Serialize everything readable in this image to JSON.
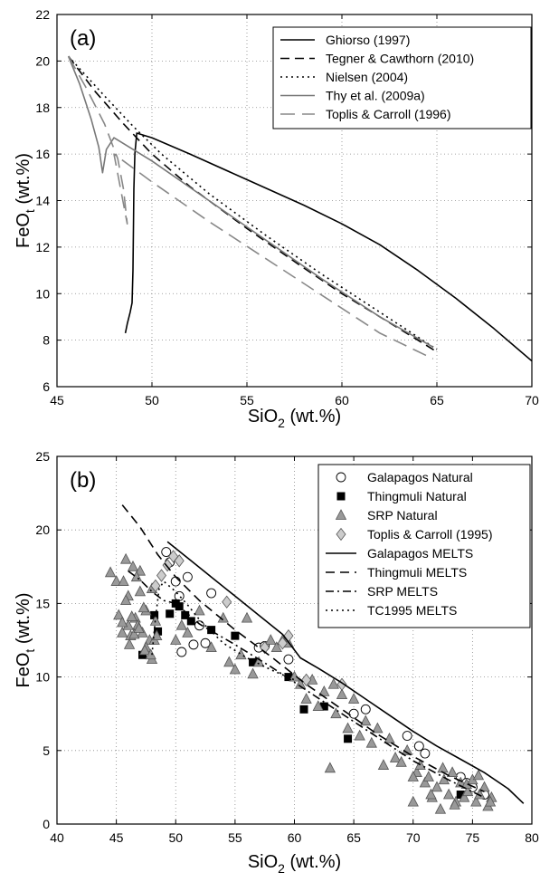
{
  "chart_data": [
    {
      "type": "line",
      "panel_label": "(a)",
      "xlabel": "SiO",
      "xlabel_sub": "2",
      "xlabel_unit": " (wt.%)",
      "ylabel": "FeO",
      "ylabel_sub": "t",
      "ylabel_unit": " (wt.%)",
      "xlim": [
        45,
        70
      ],
      "ylim": [
        6,
        22
      ],
      "xticks": [
        45,
        50,
        55,
        60,
        65,
        70
      ],
      "yticks": [
        6,
        8,
        10,
        12,
        14,
        16,
        18,
        20,
        22
      ],
      "grid": true,
      "legend_position": "top-right",
      "series": [
        {
          "name": "Ghiorso (1997)",
          "color": "#000000",
          "dash": "solid",
          "x": [
            48.6,
            48.7,
            48.85,
            48.95,
            49.0,
            49.05,
            49.1,
            49.2,
            50.0,
            52.0,
            55.0,
            58.0,
            60.0,
            62.0,
            64.0,
            66.0,
            68.0,
            70.0
          ],
          "y": [
            8.3,
            8.7,
            9.2,
            9.6,
            11.0,
            14.5,
            16.0,
            16.9,
            16.7,
            16.0,
            14.9,
            13.8,
            13.0,
            12.1,
            11.0,
            9.8,
            8.5,
            7.1
          ]
        },
        {
          "name": "Tegner & Cawthorn (2010)",
          "color": "#000000",
          "dash": "dashed",
          "x": [
            45.6,
            47.0,
            48.5,
            50.0,
            52.0,
            55.0,
            58.0,
            60.0,
            62.0,
            65.0
          ],
          "y": [
            20.2,
            18.7,
            17.3,
            16.0,
            14.6,
            12.8,
            11.1,
            10.0,
            9.0,
            7.5
          ]
        },
        {
          "name": "Nielsen (2004)",
          "color": "#000000",
          "dash": "dotted",
          "x": [
            45.6,
            47.5,
            49.0,
            50.5,
            53.0,
            56.0,
            59.0,
            62.0,
            65.0
          ],
          "y": [
            20.2,
            18.5,
            17.2,
            16.0,
            14.3,
            12.5,
            10.8,
            9.2,
            7.6
          ]
        },
        {
          "name": "Thy et al. (2009a)",
          "color": "#777777",
          "dash": "solid",
          "x": [
            45.6,
            46.2,
            46.8,
            47.2,
            47.4,
            47.6,
            48.0,
            50.0,
            53.0,
            56.0,
            59.0,
            62.0,
            64.8
          ],
          "y": [
            20.2,
            19.0,
            17.5,
            16.3,
            15.2,
            16.2,
            16.7,
            15.7,
            14.0,
            12.3,
            10.6,
            9.0,
            7.7
          ]
        },
        {
          "name": "Toplis & Carroll (1996)",
          "color": "#888888",
          "dash": "longdash",
          "x": [
            45.6,
            46.5,
            47.5,
            48.2,
            48.5,
            48.7,
            48.0,
            50.0,
            53.0,
            56.0,
            59.0,
            62.0,
            64.8
          ],
          "y": [
            20.2,
            18.9,
            17.3,
            15.8,
            14.5,
            13.0,
            16.0,
            14.8,
            13.1,
            11.5,
            9.9,
            8.3,
            7.2
          ]
        }
      ]
    },
    {
      "type": "scatter",
      "panel_label": "(b)",
      "xlabel": "SiO",
      "xlabel_sub": "2",
      "xlabel_unit": " (wt.%)",
      "ylabel": "FeO",
      "ylabel_sub": "t",
      "ylabel_unit": " (wt.%)",
      "xlim": [
        40,
        80
      ],
      "ylim": [
        0,
        25
      ],
      "xticks": [
        40,
        45,
        50,
        55,
        60,
        65,
        70,
        75,
        80
      ],
      "yticks": [
        0,
        5,
        10,
        15,
        20,
        25
      ],
      "grid": true,
      "legend_position": "top-right",
      "points": [
        {
          "name": "Galapagos Natural",
          "marker": "circle",
          "x": [
            49.2,
            49.5,
            50.0,
            50.3,
            50.5,
            51.0,
            51.5,
            52.0,
            52.5,
            53.0,
            57.0,
            57.5,
            59.5,
            65.0,
            66.0,
            69.5,
            70.5,
            71.0,
            74.0,
            74.5,
            75.0,
            76.0
          ],
          "y": [
            18.5,
            17.8,
            16.5,
            15.5,
            11.7,
            16.8,
            12.2,
            13.5,
            12.3,
            15.7,
            12.0,
            12.1,
            11.2,
            7.5,
            7.8,
            6.0,
            5.3,
            4.8,
            3.2,
            2.8,
            2.5,
            2.0
          ]
        },
        {
          "name": "Thingmuli Natural",
          "marker": "square",
          "x": [
            47.2,
            48.2,
            48.5,
            49.5,
            50.0,
            50.3,
            50.8,
            51.3,
            53.0,
            55.0,
            56.5,
            59.5,
            60.8,
            62.5,
            64.5,
            74.0
          ],
          "y": [
            11.5,
            14.2,
            13.1,
            14.3,
            15.0,
            14.8,
            14.2,
            13.8,
            13.2,
            12.8,
            11.0,
            10.0,
            7.8,
            8.0,
            5.8,
            2.0
          ]
        },
        {
          "name": "SRP Natural",
          "marker": "triangle",
          "x": [
            44.5,
            45.0,
            45.2,
            45.5,
            45.8,
            46.0,
            46.2,
            46.4,
            46.6,
            46.8,
            47.0,
            47.2,
            47.5,
            47.8,
            48.0,
            48.3,
            45.6,
            46.0,
            46.5,
            47.0,
            47.5,
            48.0,
            45.8,
            46.3,
            46.9,
            47.4,
            48.2,
            45.5,
            46.1,
            46.7,
            47.3,
            47.9,
            48.4,
            50.0,
            50.5,
            51.0,
            52.0,
            53.0,
            54.0,
            54.5,
            55.0,
            55.5,
            56.0,
            56.5,
            57.0,
            58.0,
            58.5,
            59.0,
            59.5,
            60.0,
            60.5,
            61.0,
            61.5,
            62.0,
            62.5,
            63.0,
            63.3,
            63.5,
            64.0,
            64.5,
            65.0,
            65.5,
            66.0,
            66.5,
            67.0,
            67.5,
            68.0,
            68.5,
            69.0,
            69.5,
            70.0,
            70.3,
            70.6,
            71.0,
            71.3,
            71.6,
            72.0,
            72.3,
            72.6,
            73.0,
            73.3,
            73.6,
            74.0,
            74.3,
            74.6,
            75.0,
            75.3,
            75.6,
            76.0,
            76.3,
            76.6,
            70.0,
            71.5,
            72.5,
            73.5,
            74.5,
            75.5,
            76.5
          ],
          "y": [
            17.1,
            16.5,
            14.2,
            13.0,
            18.0,
            15.5,
            12.8,
            17.5,
            14.0,
            13.5,
            15.8,
            13.0,
            14.5,
            12.5,
            11.2,
            13.8,
            16.5,
            13.5,
            12.9,
            17.2,
            12.0,
            16.0,
            15.2,
            14.1,
            13.3,
            11.8,
            12.5,
            13.7,
            12.2,
            16.8,
            14.7,
            11.5,
            12.8,
            12.5,
            13.5,
            13.0,
            14.5,
            12.0,
            14.0,
            11.0,
            10.5,
            11.5,
            14.0,
            10.2,
            11.0,
            12.5,
            12.0,
            12.5,
            12.3,
            10.0,
            9.5,
            8.5,
            9.8,
            8.0,
            9.0,
            3.8,
            9.5,
            7.5,
            8.8,
            6.5,
            8.5,
            6.0,
            7.0,
            5.5,
            6.5,
            4.0,
            5.8,
            4.5,
            4.2,
            5.0,
            1.5,
            3.5,
            4.0,
            2.8,
            3.2,
            1.8,
            2.5,
            1.0,
            3.0,
            2.0,
            3.5,
            1.5,
            2.8,
            1.8,
            2.2,
            3.0,
            1.5,
            2.0,
            2.5,
            1.2,
            1.8,
            3.2,
            2.0,
            3.8,
            1.3,
            2.7,
            3.3,
            1.5
          ]
        },
        {
          "name": "Toplis & Carroll (1995)",
          "marker": "diamond",
          "x": [
            48.3,
            48.8,
            49.3,
            49.8,
            50.3,
            54.3,
            57.5,
            59.0,
            59.5,
            61.0,
            64.0
          ],
          "y": [
            16.2,
            16.9,
            17.6,
            18.2,
            17.9,
            15.1,
            12.0,
            12.3,
            12.8,
            9.8,
            9.5
          ]
        }
      ],
      "series": [
        {
          "name": "Galapagos MELTS",
          "color": "#000000",
          "dash": "solid",
          "x": [
            49.3,
            51.0,
            53.0,
            55.0,
            57.0,
            59.0,
            60.5,
            62.0,
            64.0,
            66.0,
            68.0,
            70.0,
            72.0,
            74.0,
            76.0,
            78.0,
            79.3
          ],
          "y": [
            19.2,
            18.1,
            16.8,
            15.5,
            14.2,
            12.9,
            11.3,
            10.6,
            9.6,
            8.5,
            7.4,
            6.3,
            5.3,
            4.4,
            3.5,
            2.4,
            1.4
          ]
        },
        {
          "name": "Thingmuli MELTS",
          "color": "#000000",
          "dash": "dashed",
          "x": [
            45.5,
            47.0,
            48.5,
            50.0,
            52.0,
            55.0,
            58.0,
            61.0,
            64.0,
            67.0,
            70.0,
            73.0,
            76.0
          ],
          "y": [
            21.7,
            20.2,
            18.3,
            16.8,
            15.2,
            13.2,
            11.4,
            9.5,
            7.8,
            6.1,
            4.6,
            3.3,
            2.2
          ]
        },
        {
          "name": "SRP MELTS",
          "color": "#000000",
          "dash": "dashdot",
          "x": [
            46.0,
            47.0,
            48.0,
            49.0,
            50.0,
            51.0,
            52.0,
            55.0,
            58.0,
            61.0,
            64.0,
            67.0,
            70.0,
            73.0,
            76.0
          ],
          "y": [
            17.2,
            16.6,
            15.8,
            15.2,
            15.0,
            14.3,
            13.6,
            12.2,
            10.7,
            9.1,
            7.5,
            5.9,
            4.3,
            3.0,
            1.8
          ]
        },
        {
          "name": "TC1995 MELTS",
          "color": "#000000",
          "dash": "dotted",
          "x": [
            48.0,
            48.3,
            48.6,
            49.0,
            50.0,
            51.0,
            52.0,
            54.0,
            56.0,
            58.0,
            60.0
          ],
          "y": [
            11.5,
            14.0,
            16.0,
            16.5,
            15.8,
            14.9,
            13.9,
            12.3,
            11.3,
            10.5,
            9.8
          ]
        }
      ]
    }
  ]
}
